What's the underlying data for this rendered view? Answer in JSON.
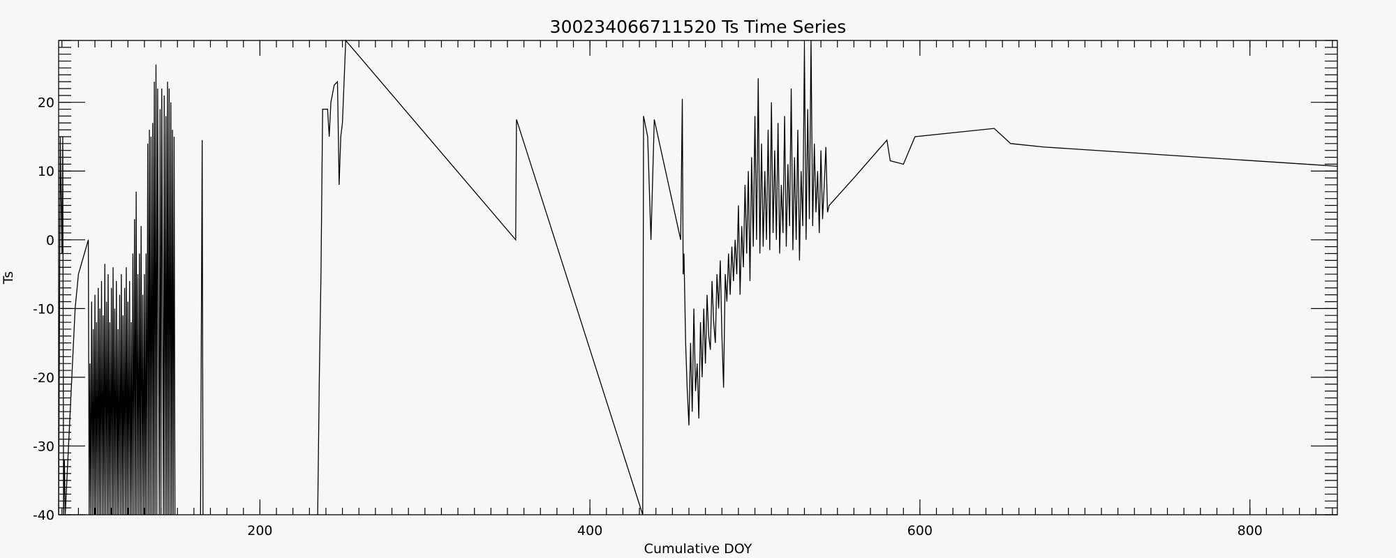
{
  "chart_data": {
    "type": "line",
    "title": "300234066711520 Ts Time Series",
    "xlabel": "Cumulative DOY",
    "ylabel": "Ts",
    "xlim": [
      78,
      853
    ],
    "ylim": [
      -40,
      29
    ],
    "xticks": [
      200,
      400,
      600,
      800
    ],
    "yticks": [
      -40,
      -30,
      -20,
      -10,
      0,
      10,
      20
    ],
    "x_minor_step": 10,
    "y_minor_step": 1,
    "grid": false,
    "legend": "none",
    "series": [
      {
        "segments": [
          [
            [
              78,
              -40
            ],
            [
              79,
              15
            ],
            [
              80,
              -2
            ],
            [
              80.5,
              15
            ],
            [
              81,
              -40
            ],
            [
              81.5,
              -32
            ],
            [
              82,
              -40
            ],
            [
              84,
              -30
            ],
            [
              86,
              -20
            ],
            [
              88,
              -10
            ],
            [
              90,
              -5
            ],
            [
              96,
              0
            ],
            [
              96.5,
              -40
            ],
            [
              97,
              -18
            ],
            [
              97.5,
              -40
            ],
            [
              98,
              -9
            ],
            [
              98.5,
              -40
            ],
            [
              99,
              -13
            ],
            [
              99.5,
              -40
            ],
            [
              100,
              -8
            ],
            [
              100.5,
              -40
            ],
            [
              101,
              -12
            ],
            [
              101.5,
              -40
            ],
            [
              102,
              -7
            ],
            [
              102.5,
              -40
            ],
            [
              103,
              -10
            ],
            [
              103.5,
              -40
            ],
            [
              104,
              -6
            ],
            [
              104.5,
              -40
            ],
            [
              105,
              -11
            ],
            [
              105.5,
              -40
            ],
            [
              106,
              -3.5
            ],
            [
              106.5,
              -40
            ],
            [
              107,
              -9
            ],
            [
              107.5,
              -40
            ],
            [
              108,
              -5
            ],
            [
              108.5,
              -40
            ],
            [
              109,
              -12
            ],
            [
              109.5,
              -40
            ],
            [
              110,
              -7
            ],
            [
              110.5,
              -40
            ],
            [
              111,
              -4
            ],
            [
              111.5,
              -40
            ],
            [
              112,
              -10
            ],
            [
              112.5,
              -40
            ],
            [
              113,
              -6
            ],
            [
              113.5,
              -40
            ],
            [
              114,
              -13
            ],
            [
              114.5,
              -40
            ],
            [
              115,
              -8
            ],
            [
              115.5,
              -40
            ],
            [
              116,
              -5
            ],
            [
              116.5,
              -40
            ],
            [
              117,
              -11
            ],
            [
              117.5,
              -40
            ],
            [
              118,
              -7
            ],
            [
              118.5,
              -40
            ],
            [
              119,
              -4
            ],
            [
              119.5,
              -40
            ],
            [
              120,
              -9
            ],
            [
              120.5,
              -40
            ],
            [
              121,
              -6
            ],
            [
              121.5,
              -40
            ],
            [
              122,
              -12
            ],
            [
              122.5,
              -40
            ],
            [
              123,
              -2
            ],
            [
              123.5,
              -40
            ],
            [
              124,
              3
            ],
            [
              124.5,
              -40
            ],
            [
              125,
              7
            ],
            [
              125.5,
              -40
            ],
            [
              126,
              -5
            ],
            [
              126.5,
              -40
            ],
            [
              127,
              -2
            ],
            [
              127.5,
              -40
            ],
            [
              128,
              2
            ],
            [
              128.5,
              -40
            ],
            [
              129,
              -8
            ],
            [
              129.5,
              -40
            ],
            [
              130,
              -5
            ],
            [
              130.5,
              -40
            ],
            [
              131,
              -2
            ],
            [
              131.5,
              -40
            ],
            [
              132,
              14
            ],
            [
              132.5,
              -40
            ],
            [
              133,
              16
            ],
            [
              133.5,
              -40
            ],
            [
              134,
              15
            ],
            [
              134.5,
              -40
            ],
            [
              135,
              17
            ],
            [
              135.5,
              -40
            ],
            [
              136,
              23
            ],
            [
              136.5,
              -40
            ],
            [
              137,
              25.5
            ],
            [
              137.5,
              -40
            ],
            [
              138,
              22
            ],
            [
              138.5,
              -10
            ],
            [
              139,
              -40
            ],
            [
              139.5,
              19
            ],
            [
              140,
              -40
            ],
            [
              140.5,
              22
            ],
            [
              141,
              -10
            ],
            [
              141.5,
              -40
            ],
            [
              142,
              21
            ],
            [
              142.5,
              -40
            ],
            [
              143,
              18
            ],
            [
              143.5,
              -40
            ],
            [
              144,
              23
            ],
            [
              144.5,
              -40
            ],
            [
              145,
              22
            ],
            [
              145.5,
              -40
            ],
            [
              146,
              20
            ],
            [
              146.5,
              -40
            ],
            [
              147,
              16
            ],
            [
              147.5,
              -40
            ],
            [
              148,
              15
            ],
            [
              148.5,
              -40
            ]
          ]
        ],
        "name": ""
      },
      {
        "segments": [
          [
            [
              164,
              -40
            ],
            [
              165,
              14.5
            ],
            [
              165.5,
              -40
            ]
          ]
        ]
      },
      {
        "segments": [
          [
            [
              235,
              -40
            ],
            [
              236,
              -20
            ],
            [
              237,
              -5
            ],
            [
              238,
              19
            ],
            [
              241,
              19
            ],
            [
              242,
              15
            ],
            [
              243,
              20
            ],
            [
              245,
              22.5
            ],
            [
              247,
              23
            ],
            [
              248,
              8
            ],
            [
              249,
              15
            ],
            [
              250,
              17
            ],
            [
              252,
              29
            ],
            [
              355,
              0
            ],
            [
              355.5,
              17.5
            ],
            [
              432,
              -40
            ],
            [
              432.5,
              18
            ],
            [
              435,
              15
            ],
            [
              437,
              0
            ],
            [
              439,
              17.5
            ],
            [
              455,
              0
            ],
            [
              456,
              20.5
            ],
            [
              456.5,
              -5
            ]
          ]
        ]
      },
      {
        "segments": [
          [
            [
              456.5,
              -5
            ],
            [
              457,
              -2
            ],
            [
              458,
              -15
            ],
            [
              459,
              -22
            ],
            [
              460,
              -27
            ],
            [
              461,
              -15
            ],
            [
              462,
              -25
            ],
            [
              463,
              -10
            ],
            [
              464,
              -22
            ],
            [
              465,
              -18
            ],
            [
              466,
              -26
            ],
            [
              467,
              -12
            ],
            [
              468,
              -20
            ],
            [
              469,
              -10
            ],
            [
              470,
              -18
            ],
            [
              471,
              -8
            ],
            [
              472,
              -14
            ],
            [
              473,
              -16
            ],
            [
              474,
              -6
            ],
            [
              475,
              -12
            ],
            [
              476,
              -15
            ],
            [
              477,
              -5
            ],
            [
              478,
              -10
            ],
            [
              479,
              -3
            ],
            [
              480,
              -14
            ],
            [
              481,
              -21.5
            ],
            [
              482,
              -5
            ],
            [
              483,
              -9
            ],
            [
              484,
              -2
            ],
            [
              485,
              -8
            ],
            [
              486,
              -1
            ],
            [
              487,
              -6
            ],
            [
              488,
              0
            ],
            [
              489,
              -5
            ],
            [
              490,
              5
            ],
            [
              491,
              -8
            ],
            [
              492,
              2
            ],
            [
              493,
              -4
            ],
            [
              494,
              8
            ],
            [
              495,
              -2
            ],
            [
              496,
              10
            ],
            [
              497,
              -6
            ],
            [
              498,
              12
            ],
            [
              499,
              -1
            ],
            [
              500,
              18
            ],
            [
              501,
              0
            ],
            [
              502,
              23.5
            ],
            [
              503,
              -2
            ],
            [
              504,
              14
            ],
            [
              505,
              -1
            ],
            [
              506,
              10
            ],
            [
              507,
              0
            ],
            [
              508,
              16
            ],
            [
              509,
              -1.5
            ],
            [
              510,
              20
            ],
            [
              511,
              1
            ],
            [
              512,
              13
            ],
            [
              513,
              0
            ],
            [
              514,
              17
            ],
            [
              515,
              -2
            ],
            [
              516,
              8
            ],
            [
              517,
              1
            ],
            [
              518,
              18
            ],
            [
              519,
              -1
            ],
            [
              520,
              11
            ],
            [
              521,
              2
            ],
            [
              522,
              22
            ],
            [
              523,
              -1.5
            ],
            [
              524,
              12
            ],
            [
              525,
              0
            ],
            [
              526,
              16
            ],
            [
              527,
              -3
            ],
            [
              528,
              10
            ],
            [
              529,
              2
            ],
            [
              530,
              28
            ],
            [
              531,
              0
            ],
            [
              532,
              19
            ],
            [
              533,
              3
            ],
            [
              534,
              29
            ],
            [
              535,
              2
            ],
            [
              536,
              14
            ],
            [
              537,
              4
            ],
            [
              538,
              10
            ],
            [
              539,
              1
            ],
            [
              540,
              13
            ],
            [
              541,
              3
            ],
            [
              542,
              8
            ],
            [
              543,
              13.5
            ],
            [
              544,
              4
            ],
            [
              545,
              5
            ],
            [
              560,
              9
            ],
            [
              580,
              14.5
            ],
            [
              582,
              11.5
            ],
            [
              590,
              11
            ],
            [
              597,
              15
            ],
            [
              645,
              16.2
            ],
            [
              655,
              14
            ],
            [
              675,
              13.5
            ],
            [
              853,
              10.7
            ]
          ]
        ]
      }
    ]
  }
}
